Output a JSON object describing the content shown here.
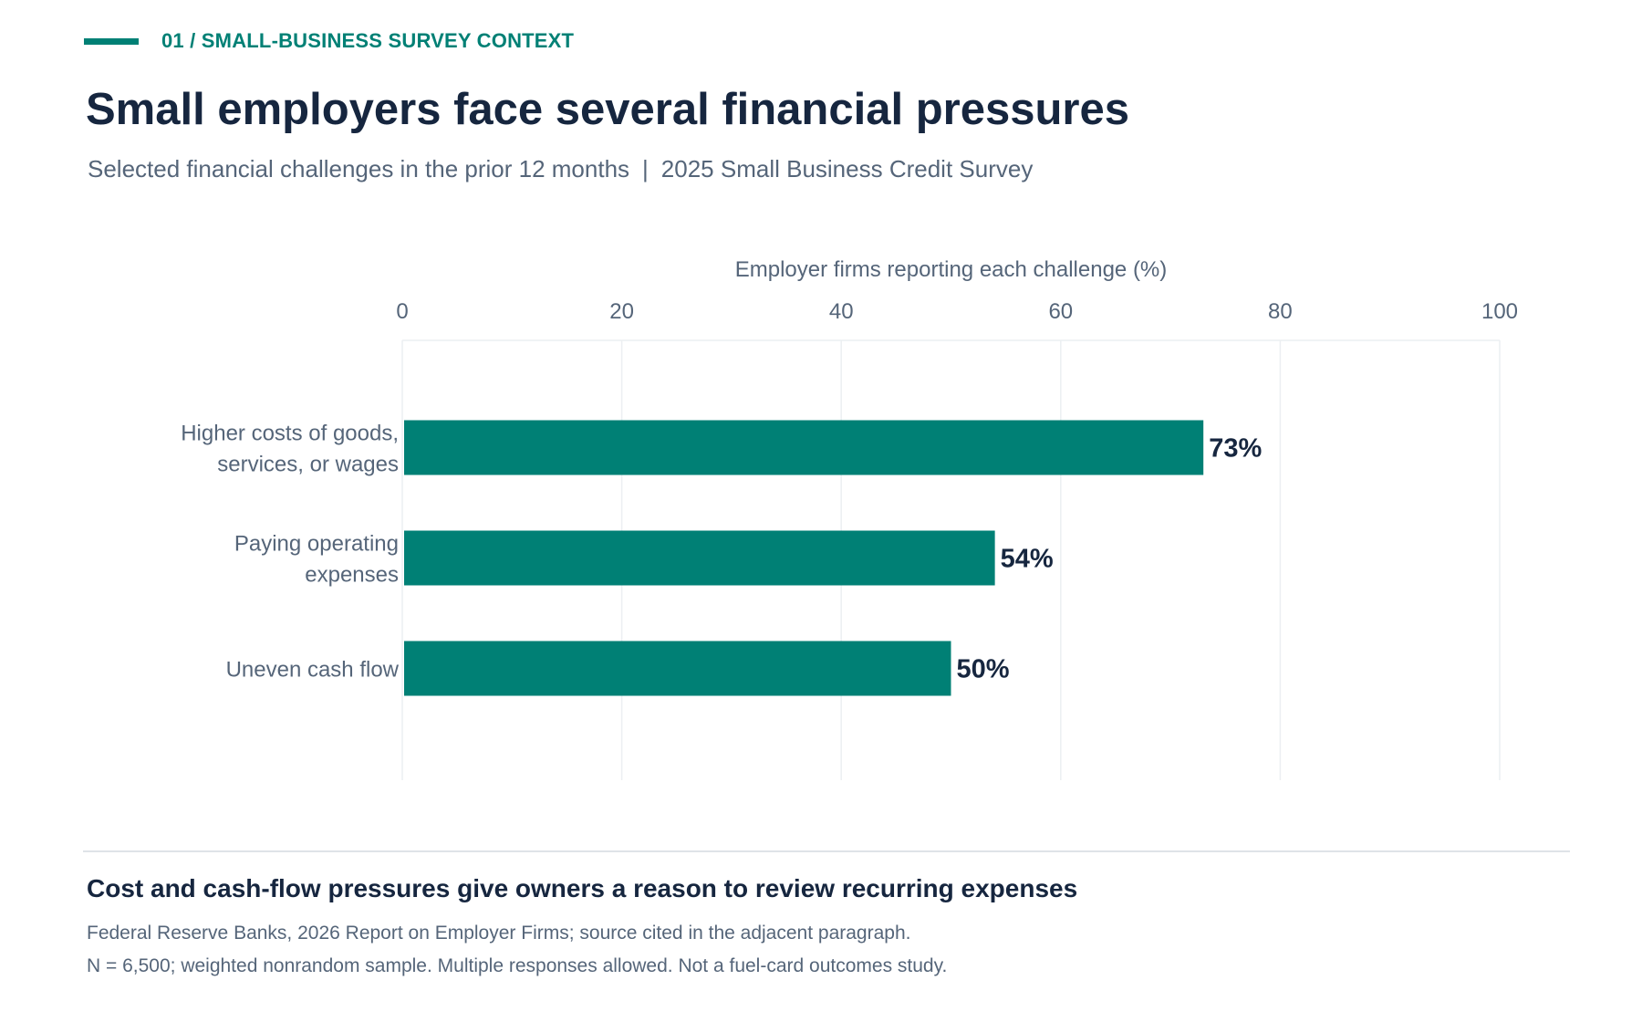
{
  "header": {
    "kicker": "01 / SMALL-BUSINESS SURVEY CONTEXT",
    "title": "Small employers face several financial pressures",
    "subtitle_left": "Selected financial challenges in the prior 12 months",
    "subtitle_sep": "|",
    "subtitle_right": "2025 Small Business Credit Survey"
  },
  "colors": {
    "accent": "#008075",
    "title": "#16263f",
    "muted": "#556579",
    "grid": "#eceff2"
  },
  "chart_data": {
    "type": "bar",
    "orientation": "horizontal",
    "xlabel": "Employer firms reporting each challenge (%)",
    "xlim": [
      0,
      100
    ],
    "xticks": [
      0,
      20,
      40,
      60,
      80,
      100
    ],
    "grid": true,
    "categories": [
      [
        "Higher costs of goods,",
        "services, or wages"
      ],
      [
        "Paying operating",
        "expenses"
      ],
      [
        "Uneven cash flow"
      ]
    ],
    "values": [
      73,
      54,
      50
    ],
    "value_labels": [
      "73%",
      "54%",
      "50%"
    ],
    "bar_color": "#008075"
  },
  "footer": {
    "takeaway": "Cost and cash-flow pressures give owners a reason to review recurring expenses",
    "source": "Federal Reserve Banks, 2026 Report on Employer Firms; source cited in the adjacent paragraph.",
    "note": "N = 6,500; weighted nonrandom sample. Multiple responses allowed. Not a fuel-card outcomes study."
  }
}
